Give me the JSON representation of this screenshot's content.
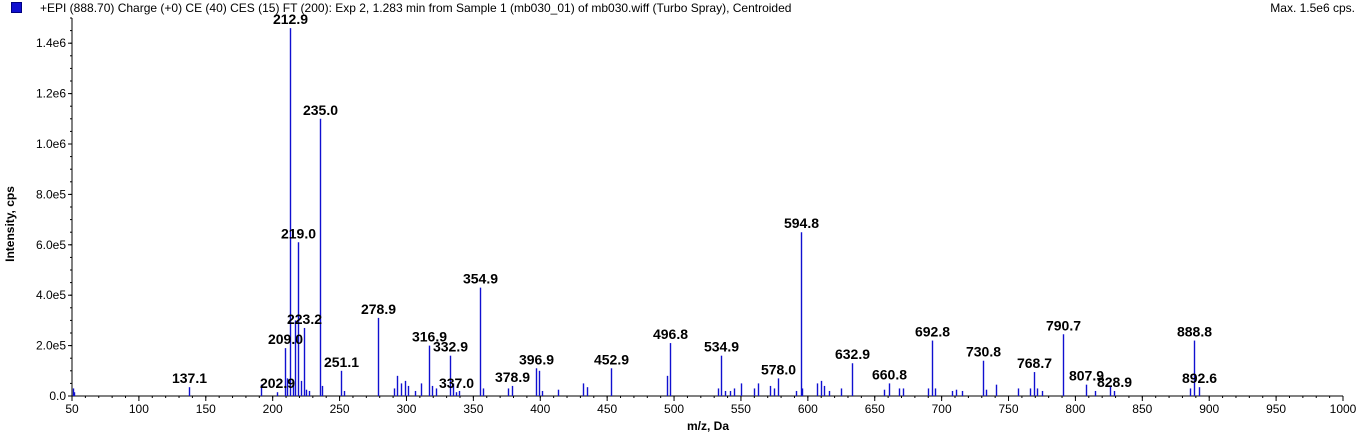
{
  "header": {
    "title": "+EPI (888.70) Charge (+0) CE (40) CES (15) FT (200): Exp 2, 1.283 min from Sample 1 (mb030_01) of mb030.wiff (Turbo Spray), Centroided",
    "max": "Max. 1.5e6 cps.",
    "series_color": "#1010d0"
  },
  "chart_data": {
    "type": "bar",
    "title": "+EPI (888.70) Charge (+0) CE (40) CES (15) FT (200): Exp 2, 1.283 min from Sample 1 (mb030_01) of mb030.wiff (Turbo Spray), Centroided",
    "xlabel": "m/z, Da",
    "ylabel": "Intensity, cps",
    "xlim": [
      50,
      1000
    ],
    "ylim": [
      0,
      1500000
    ],
    "x_ticks": [
      50,
      100,
      150,
      200,
      250,
      300,
      350,
      400,
      450,
      500,
      550,
      600,
      650,
      700,
      750,
      800,
      850,
      900,
      950,
      1000
    ],
    "y_ticks": [
      {
        "value": 0,
        "label": "0.0"
      },
      {
        "value": 200000,
        "label": "2.0e5"
      },
      {
        "value": 400000,
        "label": "4.0e5"
      },
      {
        "value": 600000,
        "label": "6.0e5"
      },
      {
        "value": 800000,
        "label": "8.0e5"
      },
      {
        "value": 1000000,
        "label": "1.0e6"
      },
      {
        "value": 1200000,
        "label": "1.2e6"
      },
      {
        "value": 1400000,
        "label": "1.4e6"
      }
    ],
    "grid": false,
    "peaks": [
      {
        "mz": 50.5,
        "intensity": 30000
      },
      {
        "mz": 51.5,
        "intensity": 15000
      },
      {
        "mz": 137.1,
        "intensity": 35000,
        "label": "137.1"
      },
      {
        "mz": 191.0,
        "intensity": 45000
      },
      {
        "mz": 202.9,
        "intensity": 15000,
        "label": "202.9"
      },
      {
        "mz": 209.0,
        "intensity": 190000,
        "label": "209.0"
      },
      {
        "mz": 211.0,
        "intensity": 70000
      },
      {
        "mz": 212.9,
        "intensity": 1460000,
        "label": "212.9"
      },
      {
        "mz": 215.0,
        "intensity": 50000
      },
      {
        "mz": 217.0,
        "intensity": 300000
      },
      {
        "mz": 219.0,
        "intensity": 610000,
        "label": "219.0"
      },
      {
        "mz": 221.0,
        "intensity": 60000
      },
      {
        "mz": 223.2,
        "intensity": 270000,
        "label": "223.2"
      },
      {
        "mz": 225.0,
        "intensity": 25000
      },
      {
        "mz": 227.0,
        "intensity": 20000
      },
      {
        "mz": 235.0,
        "intensity": 1100000,
        "label": "235.0"
      },
      {
        "mz": 237.0,
        "intensity": 40000
      },
      {
        "mz": 251.1,
        "intensity": 100000,
        "label": "251.1"
      },
      {
        "mz": 253.0,
        "intensity": 20000
      },
      {
        "mz": 278.9,
        "intensity": 310000,
        "label": "278.9"
      },
      {
        "mz": 291.0,
        "intensity": 30000
      },
      {
        "mz": 293.0,
        "intensity": 80000
      },
      {
        "mz": 296.0,
        "intensity": 50000
      },
      {
        "mz": 299.0,
        "intensity": 60000
      },
      {
        "mz": 301.0,
        "intensity": 40000
      },
      {
        "mz": 306.0,
        "intensity": 20000
      },
      {
        "mz": 311.0,
        "intensity": 50000
      },
      {
        "mz": 316.9,
        "intensity": 200000,
        "label": "316.9"
      },
      {
        "mz": 319.0,
        "intensity": 40000
      },
      {
        "mz": 322.0,
        "intensity": 30000
      },
      {
        "mz": 332.9,
        "intensity": 160000,
        "label": "332.9"
      },
      {
        "mz": 335.0,
        "intensity": 50000
      },
      {
        "mz": 337.0,
        "intensity": 15000,
        "label": "337.0"
      },
      {
        "mz": 339.0,
        "intensity": 20000
      },
      {
        "mz": 354.9,
        "intensity": 430000,
        "label": "354.9"
      },
      {
        "mz": 357.0,
        "intensity": 30000
      },
      {
        "mz": 376.0,
        "intensity": 30000
      },
      {
        "mz": 378.9,
        "intensity": 40000,
        "label": "378.9"
      },
      {
        "mz": 396.9,
        "intensity": 110000,
        "label": "396.9"
      },
      {
        "mz": 399.0,
        "intensity": 100000
      },
      {
        "mz": 401.0,
        "intensity": 20000
      },
      {
        "mz": 413.0,
        "intensity": 25000
      },
      {
        "mz": 432.0,
        "intensity": 50000
      },
      {
        "mz": 435.0,
        "intensity": 35000
      },
      {
        "mz": 452.9,
        "intensity": 110000,
        "label": "452.9"
      },
      {
        "mz": 495.0,
        "intensity": 80000
      },
      {
        "mz": 496.8,
        "intensity": 210000,
        "label": "496.8"
      },
      {
        "mz": 533.0,
        "intensity": 30000
      },
      {
        "mz": 534.9,
        "intensity": 160000,
        "label": "534.9"
      },
      {
        "mz": 538.0,
        "intensity": 20000
      },
      {
        "mz": 542.0,
        "intensity": 20000
      },
      {
        "mz": 545.0,
        "intensity": 30000
      },
      {
        "mz": 550.0,
        "intensity": 50000
      },
      {
        "mz": 560.0,
        "intensity": 30000
      },
      {
        "mz": 563.0,
        "intensity": 50000
      },
      {
        "mz": 572.0,
        "intensity": 40000
      },
      {
        "mz": 575.0,
        "intensity": 30000
      },
      {
        "mz": 578.0,
        "intensity": 70000,
        "label": "578.0"
      },
      {
        "mz": 591.0,
        "intensity": 20000
      },
      {
        "mz": 594.8,
        "intensity": 650000,
        "label": "594.8"
      },
      {
        "mz": 596.0,
        "intensity": 30000
      },
      {
        "mz": 607.0,
        "intensity": 50000
      },
      {
        "mz": 610.0,
        "intensity": 60000
      },
      {
        "mz": 612.0,
        "intensity": 40000
      },
      {
        "mz": 616.0,
        "intensity": 20000
      },
      {
        "mz": 625.0,
        "intensity": 30000
      },
      {
        "mz": 632.9,
        "intensity": 130000,
        "label": "632.9"
      },
      {
        "mz": 657.0,
        "intensity": 25000
      },
      {
        "mz": 660.8,
        "intensity": 50000,
        "label": "660.8"
      },
      {
        "mz": 668.0,
        "intensity": 30000
      },
      {
        "mz": 671.0,
        "intensity": 30000
      },
      {
        "mz": 690.0,
        "intensity": 30000
      },
      {
        "mz": 692.8,
        "intensity": 220000,
        "label": "692.8"
      },
      {
        "mz": 695.0,
        "intensity": 30000
      },
      {
        "mz": 708.0,
        "intensity": 20000
      },
      {
        "mz": 711.0,
        "intensity": 25000
      },
      {
        "mz": 715.0,
        "intensity": 20000
      },
      {
        "mz": 730.8,
        "intensity": 140000,
        "label": "730.8"
      },
      {
        "mz": 733.0,
        "intensity": 25000
      },
      {
        "mz": 741.0,
        "intensity": 45000
      },
      {
        "mz": 757.0,
        "intensity": 30000
      },
      {
        "mz": 766.0,
        "intensity": 30000
      },
      {
        "mz": 768.7,
        "intensity": 95000,
        "label": "768.7"
      },
      {
        "mz": 771.0,
        "intensity": 30000
      },
      {
        "mz": 775.0,
        "intensity": 20000
      },
      {
        "mz": 790.7,
        "intensity": 245000,
        "label": "790.7"
      },
      {
        "mz": 807.9,
        "intensity": 45000,
        "label": "807.9"
      },
      {
        "mz": 815.0,
        "intensity": 20000
      },
      {
        "mz": 826.0,
        "intensity": 40000
      },
      {
        "mz": 828.9,
        "intensity": 20000,
        "label": "828.9"
      },
      {
        "mz": 886.0,
        "intensity": 30000
      },
      {
        "mz": 888.8,
        "intensity": 220000,
        "label": "888.8"
      },
      {
        "mz": 892.6,
        "intensity": 35000,
        "label": "892.6"
      }
    ]
  }
}
